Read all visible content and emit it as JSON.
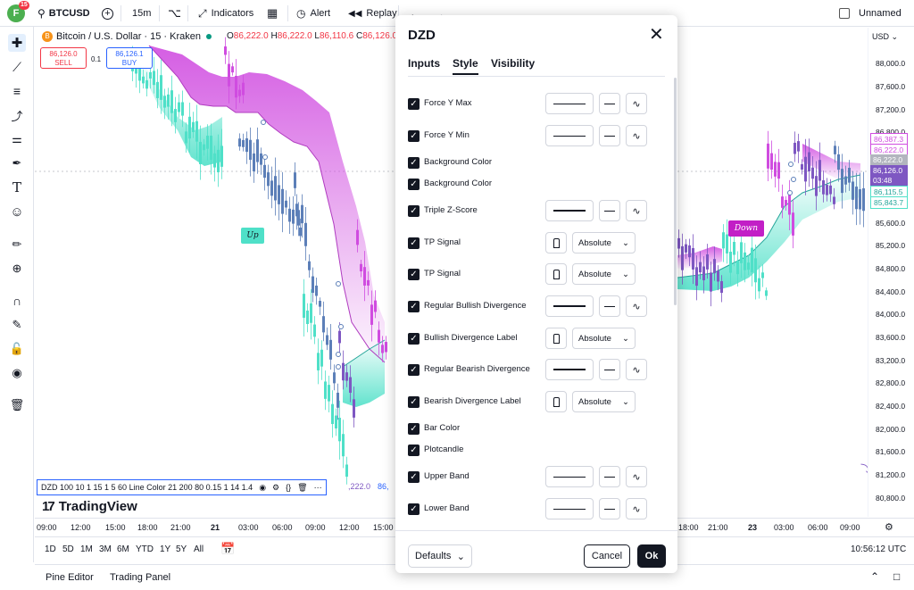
{
  "topbar": {
    "avatar_letter": "F",
    "avatar_badge": "15",
    "symbol": "BTCUSD",
    "interval": "15m",
    "indicators_label": "Indicators",
    "alert_label": "Alert",
    "replay_label": "Replay",
    "layout_name": "Unnamed"
  },
  "chart": {
    "title": "Bitcoin / U.S. Dollar · 15 · Kraken",
    "ohlc": {
      "o": "86,222.0",
      "h": "86,222.0",
      "l": "86,110.6",
      "c": "86,126.0"
    },
    "sell_price": "86,126.0",
    "sell_label": "SELL",
    "buy_price": "86,126.1",
    "buy_label": "BUY",
    "qty": "0.1",
    "signal_up": "Up",
    "signal_down": "Down",
    "legend_text": "DZD 100 10 1 15 1 5 60 Line Color 21 200 80 0.15 1 14 1.4",
    "legend_tail_a": ",222.0",
    "legend_tail_b": "86,",
    "brand": "TradingView",
    "currency": "USD",
    "price_ticks": [
      "88,000.0",
      "87,600.0",
      "87,200.0",
      "86,800.0",
      "85,600.0",
      "85,200.0",
      "84,800.0",
      "84,400.0",
      "84,000.0",
      "83,600.0",
      "83,200.0",
      "82,800.0",
      "82,400.0",
      "82,000.0",
      "81,600.0",
      "81,200.0",
      "80,800.0"
    ],
    "price_tags": [
      "86,387.3",
      "86,222.0",
      "86,222.0",
      "86,126.0",
      "03:48",
      "86,115.5",
      "85,843.7"
    ],
    "time_ticks": [
      "09:00",
      "12:00",
      "15:00",
      "18:00",
      "21:00",
      "21",
      "03:00",
      "06:00",
      "09:00",
      "12:00",
      "15:00",
      "18:00",
      "21:00",
      "23",
      "03:00",
      "06:00",
      "09:00"
    ],
    "ranges": [
      "1D",
      "5D",
      "1M",
      "3M",
      "6M",
      "YTD",
      "1Y",
      "5Y",
      "All"
    ],
    "clock": "10:56:12 UTC"
  },
  "panels": {
    "pine": "Pine Editor",
    "trading": "Trading Panel"
  },
  "dialog": {
    "title": "DZD",
    "tabs": [
      "Inputs",
      "Style",
      "Visibility"
    ],
    "rows": [
      {
        "label": "Force Y Max",
        "kind": "line"
      },
      {
        "label": "Force Y Min",
        "kind": "line"
      },
      {
        "label": "Background Color",
        "kind": "none"
      },
      {
        "label": "Background Color",
        "kind": "none"
      },
      {
        "label": "Triple Z-Score",
        "kind": "line-thick"
      },
      {
        "label": "TP Signal",
        "kind": "shape",
        "select": "Absolute"
      },
      {
        "label": "TP Signal",
        "kind": "shape",
        "select": "Absolute"
      },
      {
        "label": "Regular Bullish Divergence",
        "kind": "line-thick"
      },
      {
        "label": "Bullish Divergence Label",
        "kind": "shape",
        "select": "Absolute"
      },
      {
        "label": "Regular Bearish Divergence",
        "kind": "line-thick"
      },
      {
        "label": "Bearish Divergence Label",
        "kind": "shape",
        "select": "Absolute"
      },
      {
        "label": "Bar Color",
        "kind": "none"
      },
      {
        "label": "Plotcandle",
        "kind": "none"
      },
      {
        "label": "Upper Band",
        "kind": "line"
      },
      {
        "label": "Lower Band",
        "kind": "line"
      }
    ],
    "defaults_label": "Defaults",
    "cancel_label": "Cancel",
    "ok_label": "Ok"
  },
  "colors": {
    "accent": "#2962ff",
    "bear": "#f23645",
    "teal": "#4fe0c8",
    "magenta": "#d04ce0",
    "down_signal": "#c21fc6"
  }
}
